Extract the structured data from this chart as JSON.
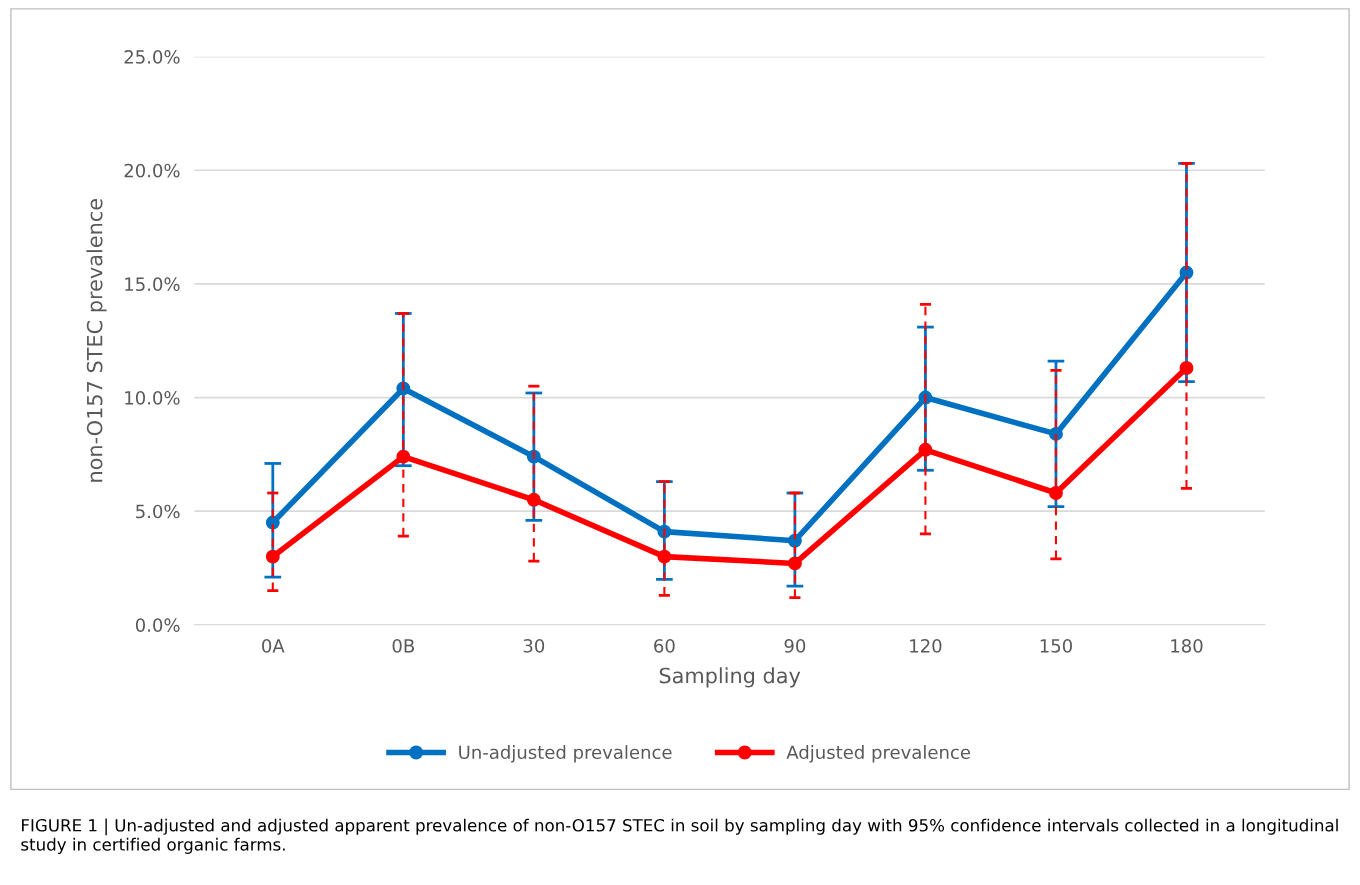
{
  "chart_data": {
    "type": "line",
    "xlabel": "Sampling day",
    "ylabel": "non-O157 STEC prevalence",
    "categories": [
      "0A",
      "0B",
      "30",
      "60",
      "90",
      "120",
      "150",
      "180"
    ],
    "series": [
      {
        "name": "Un-adjusted prevalence",
        "color": "#0070c0",
        "values": [
          4.5,
          10.4,
          7.4,
          4.1,
          3.7,
          10.0,
          8.4,
          15.5
        ],
        "errors": [
          [
            2.1,
            7.1
          ],
          [
            7.0,
            13.7
          ],
          [
            4.6,
            10.2
          ],
          [
            2.0,
            6.3
          ],
          [
            1.7,
            5.8
          ],
          [
            6.8,
            13.1
          ],
          [
            5.2,
            11.6
          ],
          [
            10.7,
            20.3
          ]
        ]
      },
      {
        "name": "Adjusted prevalence",
        "color": "#ff0000",
        "values": [
          3.0,
          7.4,
          5.5,
          3.0,
          2.7,
          7.7,
          5.8,
          11.3
        ],
        "errors": [
          [
            1.5,
            5.8
          ],
          [
            3.9,
            13.7
          ],
          [
            2.8,
            10.5
          ],
          [
            1.3,
            6.3
          ],
          [
            1.2,
            5.8
          ],
          [
            4.0,
            14.1
          ],
          [
            2.9,
            11.2
          ],
          [
            6.0,
            20.3
          ]
        ]
      }
    ],
    "ylim": [
      0,
      25
    ],
    "yticks": [
      {
        "value": 0,
        "label": "0.0%"
      },
      {
        "value": 5,
        "label": "5.0%"
      },
      {
        "value": 10,
        "label": "10.0%"
      },
      {
        "value": 15,
        "label": "15.0%"
      },
      {
        "value": 20,
        "label": "20.0%"
      },
      {
        "value": 25,
        "label": "25.0%"
      }
    ],
    "grid": "y",
    "legend": "bottom",
    "marker": "circle",
    "line_style": "solid",
    "annotations": [
      "FIGURE 1 | Un-adjusted and adjusted apparent prevalence of non-O157 STEC in soil by sampling day with 95% confidence intervals collected in a longitudinal study in certified organic farms."
    ]
  }
}
